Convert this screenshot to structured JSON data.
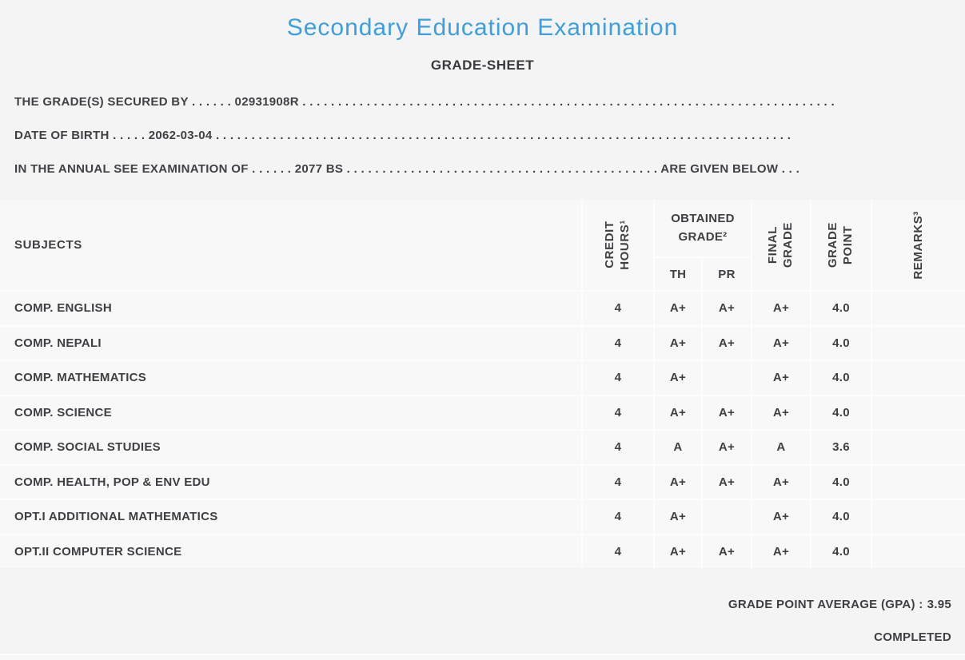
{
  "header": {
    "title": "Secondary Education Examination",
    "subtitle": "GRADE-SHEET",
    "title_color": "#3b9fe0"
  },
  "info": {
    "line1": "THE GRADE(S) SECURED BY . . . . . . 02931908R . . . . . . . . . . . . . . . . . . . . . . . . . . . . . . . . . . . . . . . . . . . . . . . . . . . . . . . . . . . . . . . . . . . . . . . . . . .",
    "line2": "DATE OF BIRTH . . . . . 2062-03-04 . . . . . . . . . . . . . . . . . . . . . . . . . . . . . . . . . . . . . . . . . . . . . . . . . . . . . . . . . . . . . . . . . . . . . . . . . . . . . . . . .",
    "line3": "IN THE ANNUAL SEE EXAMINATION OF . . . . . . 2077 BS . . . . . . . . . . . . . . . . . . . . . . . . . . . . . . . . . . . . . . . . . . . . ARE GIVEN BELOW . . .",
    "candidate_id": "02931908R",
    "date_of_birth": "2062-03-04",
    "exam_year": "2077 BS"
  },
  "table": {
    "columns": {
      "subjects": "SUBJECTS",
      "credit_hours": "CREDIT\nHOURS¹",
      "obtained_grade": "OBTAINED GRADE²",
      "th": "TH",
      "pr": "PR",
      "final_grade": "FINAL\nGRADE",
      "grade_point": "GRADE\nPOINT",
      "remarks": "REMARKS³"
    },
    "rows": [
      {
        "subject": "COMP. ENGLISH",
        "credit": "4",
        "th": "A+",
        "pr": "A+",
        "final": "A+",
        "point": "4.0",
        "remarks": ""
      },
      {
        "subject": "COMP. NEPALI",
        "credit": "4",
        "th": "A+",
        "pr": "A+",
        "final": "A+",
        "point": "4.0",
        "remarks": ""
      },
      {
        "subject": "COMP. MATHEMATICS",
        "credit": "4",
        "th": "A+",
        "pr": "",
        "final": "A+",
        "point": "4.0",
        "remarks": ""
      },
      {
        "subject": "COMP. SCIENCE",
        "credit": "4",
        "th": "A+",
        "pr": "A+",
        "final": "A+",
        "point": "4.0",
        "remarks": ""
      },
      {
        "subject": "COMP. SOCIAL STUDIES",
        "credit": "4",
        "th": "A",
        "pr": "A+",
        "final": "A",
        "point": "3.6",
        "remarks": ""
      },
      {
        "subject": "COMP. HEALTH, POP & ENV EDU",
        "credit": "4",
        "th": "A+",
        "pr": "A+",
        "final": "A+",
        "point": "4.0",
        "remarks": ""
      },
      {
        "subject": "OPT.I ADDITIONAL MATHEMATICS",
        "credit": "4",
        "th": "A+",
        "pr": "",
        "final": "A+",
        "point": "4.0",
        "remarks": ""
      },
      {
        "subject": "OPT.II COMPUTER SCIENCE",
        "credit": "4",
        "th": "A+",
        "pr": "A+",
        "final": "A+",
        "point": "4.0",
        "remarks": ""
      }
    ]
  },
  "summary": {
    "gpa_label": "GRADE POINT AVERAGE (GPA) :",
    "gpa_value": "3.95",
    "status": "COMPLETED"
  }
}
